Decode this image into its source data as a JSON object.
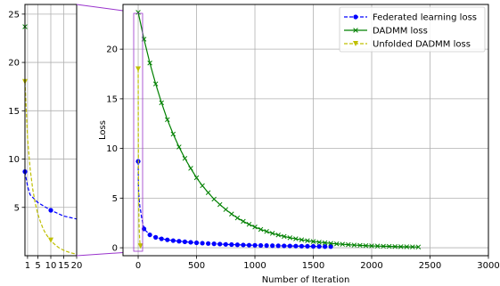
{
  "chart_data": [
    {
      "type": "line",
      "xlabel": "Number of Iteration",
      "ylabel": "Loss",
      "xlim": [
        -130,
        3000
      ],
      "ylim": [
        -0.8,
        24.5
      ],
      "xticks": [
        0,
        500,
        1000,
        1500,
        2000,
        2500,
        3000
      ],
      "yticks": [
        0,
        5,
        10,
        15,
        20
      ],
      "grid": true,
      "legend": "top-right",
      "series": [
        {
          "name": "Federated learning loss",
          "color": "#0000ff",
          "linestyle": "dashed",
          "marker": "circle",
          "x": [
            0,
            1,
            2,
            5,
            10,
            15,
            20,
            30,
            50,
            100,
            150,
            200,
            250,
            300,
            350,
            400,
            450,
            500,
            550,
            600,
            650,
            700,
            750,
            800,
            850,
            900,
            950,
            1000,
            1050,
            1100,
            1150,
            1200,
            1250,
            1300,
            1350,
            1400,
            1450,
            1500,
            1550,
            1600,
            1650
          ],
          "y": [
            8.7,
            7.2,
            6.3,
            5.5,
            4.7,
            4.1,
            3.8,
            3.0,
            1.9,
            1.3,
            1.05,
            0.9,
            0.8,
            0.72,
            0.66,
            0.6,
            0.55,
            0.5,
            0.46,
            0.43,
            0.4,
            0.37,
            0.34,
            0.32,
            0.3,
            0.28,
            0.26,
            0.25,
            0.23,
            0.22,
            0.21,
            0.2,
            0.19,
            0.18,
            0.17,
            0.16,
            0.15,
            0.14,
            0.13,
            0.12,
            0.12
          ]
        },
        {
          "name": "DADMM loss",
          "color": "#008000",
          "linestyle": "solid",
          "marker": "x",
          "x": [
            0,
            50,
            100,
            150,
            200,
            250,
            300,
            350,
            400,
            450,
            500,
            550,
            600,
            650,
            700,
            750,
            800,
            850,
            900,
            950,
            1000,
            1050,
            1100,
            1150,
            1200,
            1250,
            1300,
            1350,
            1400,
            1450,
            1500,
            1550,
            1600,
            1650,
            1700,
            1750,
            1800,
            1850,
            1900,
            1950,
            2000,
            2050,
            2100,
            2150,
            2200,
            2250,
            2300,
            2350,
            2400
          ],
          "y": [
            23.7,
            21.0,
            18.6,
            16.5,
            14.6,
            12.9,
            11.45,
            10.15,
            9.0,
            8.0,
            7.05,
            6.25,
            5.55,
            4.9,
            4.35,
            3.85,
            3.4,
            3.0,
            2.66,
            2.36,
            2.09,
            1.85,
            1.64,
            1.45,
            1.29,
            1.14,
            1.01,
            0.9,
            0.8,
            0.71,
            0.63,
            0.56,
            0.5,
            0.44,
            0.39,
            0.35,
            0.31,
            0.27,
            0.24,
            0.21,
            0.19,
            0.17,
            0.15,
            0.14,
            0.12,
            0.11,
            0.1,
            0.09,
            0.08
          ]
        },
        {
          "name": "Unfolded DADMM loss",
          "color": "#bfbf00",
          "linestyle": "dashed",
          "marker": "triangle-down",
          "x": [
            0,
            1,
            2,
            3,
            4,
            5,
            6,
            7,
            8,
            9,
            10,
            11,
            12,
            13,
            14,
            15,
            16,
            17,
            18,
            19,
            20
          ],
          "y": [
            18.0,
            12.2,
            9.0,
            6.9,
            5.4,
            4.3,
            3.5,
            2.8,
            2.3,
            1.9,
            1.6,
            1.3,
            1.05,
            0.85,
            0.7,
            0.56,
            0.45,
            0.36,
            0.28,
            0.22,
            0.18
          ]
        }
      ]
    },
    {
      "type": "line",
      "inset": "zoom of iterations 0-20",
      "xlim": [
        0,
        20
      ],
      "ylim": [
        0,
        26
      ],
      "xticks": [
        1,
        5,
        10,
        15,
        20
      ],
      "yticks": [
        5,
        10,
        15,
        20,
        25
      ],
      "grid": true
    }
  ]
}
